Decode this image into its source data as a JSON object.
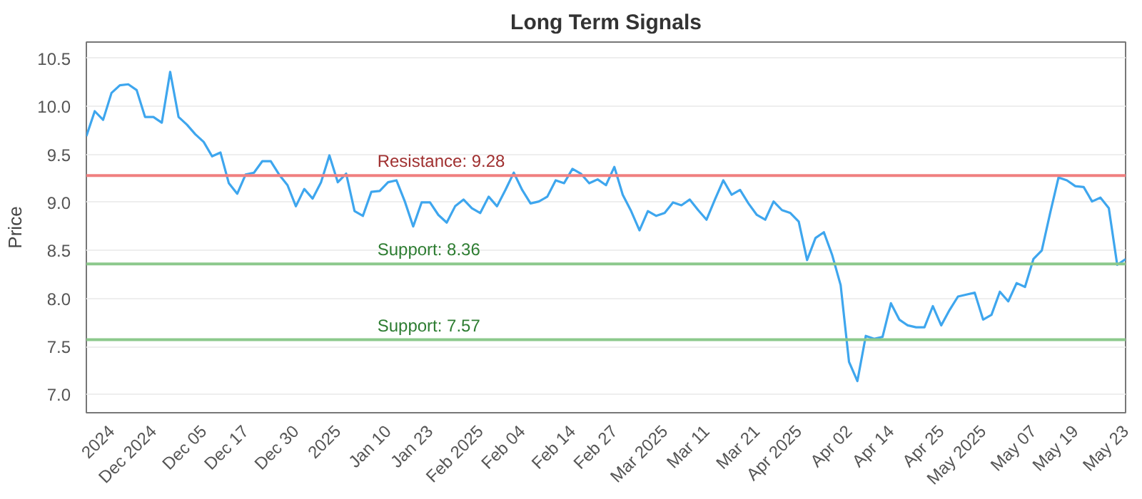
{
  "chart_data": {
    "type": "line",
    "title": "Long Term Signals",
    "ylabel": "Price",
    "categories": [
      null,
      null,
      null,
      "2024",
      null,
      null,
      null,
      null,
      "Dec 2024",
      null,
      null,
      null,
      null,
      null,
      "Dec 05",
      null,
      null,
      null,
      null,
      "Dec 17",
      null,
      null,
      null,
      null,
      null,
      "Dec 30",
      null,
      null,
      null,
      null,
      "2025",
      null,
      null,
      null,
      null,
      null,
      "Jan 10",
      null,
      null,
      null,
      null,
      "Jan 23",
      null,
      null,
      null,
      null,
      null,
      "Feb 2025",
      null,
      null,
      null,
      null,
      "Feb 04",
      null,
      null,
      null,
      null,
      null,
      "Feb 14",
      null,
      null,
      null,
      null,
      "Feb 27",
      null,
      null,
      null,
      null,
      null,
      "Mar 2025",
      null,
      null,
      null,
      null,
      "Mar 11",
      null,
      null,
      null,
      null,
      null,
      "Mar 21",
      null,
      null,
      null,
      null,
      "Apr 2025",
      null,
      null,
      null,
      null,
      null,
      "Apr 02",
      null,
      null,
      null,
      null,
      "Apr 14",
      null,
      null,
      null,
      null,
      null,
      "Apr 25",
      null,
      null,
      null,
      null,
      "May 2025",
      null,
      null,
      null,
      null,
      null,
      "May 07",
      null,
      null,
      null,
      null,
      "May 19",
      null,
      null,
      null,
      null,
      null,
      "May 23"
    ],
    "series": [
      {
        "color": "#3ea6ee",
        "values": [
          9.69,
          9.95,
          9.86,
          10.14,
          10.22,
          10.23,
          10.17,
          9.89,
          9.89,
          9.83,
          10.36,
          9.89,
          9.81,
          9.71,
          9.63,
          9.48,
          9.52,
          9.2,
          9.09,
          9.29,
          9.31,
          9.43,
          9.43,
          9.29,
          9.18,
          8.96,
          9.14,
          9.04,
          9.21,
          9.49,
          9.21,
          9.3,
          8.91,
          8.86,
          9.11,
          9.12,
          9.21,
          9.23,
          9.01,
          8.75,
          9.0,
          9.0,
          8.87,
          8.79,
          8.96,
          9.03,
          8.94,
          8.89,
          9.06,
          8.96,
          9.13,
          9.31,
          9.13,
          8.99,
          9.01,
          9.06,
          9.23,
          9.2,
          9.35,
          9.3,
          9.2,
          9.24,
          9.18,
          9.37,
          9.08,
          8.91,
          8.71,
          8.91,
          8.86,
          8.89,
          9.0,
          8.97,
          9.03,
          8.92,
          8.82,
          9.03,
          9.23,
          9.08,
          9.13,
          8.99,
          8.87,
          8.82,
          9.01,
          8.92,
          8.89,
          8.8,
          8.4,
          8.63,
          8.69,
          8.45,
          8.14,
          7.34,
          7.14,
          7.61,
          7.58,
          7.6,
          7.95,
          7.78,
          7.72,
          7.7,
          7.7,
          7.92,
          7.72,
          7.88,
          8.02,
          8.04,
          8.06,
          7.78,
          7.83,
          8.07,
          7.97,
          8.16,
          8.12,
          8.41,
          8.5,
          8.89,
          9.26,
          9.23,
          9.17,
          9.16,
          9.01,
          9.05,
          8.94,
          8.35,
          8.41
        ]
      }
    ],
    "ylim": [
      6.81,
      10.67
    ],
    "yticks": [
      {
        "value": 7,
        "label": "7.0"
      },
      {
        "value": 7.5,
        "label": "7.5"
      },
      {
        "value": 8,
        "label": "8.0"
      },
      {
        "value": 8.5,
        "label": "8.5"
      },
      {
        "value": 9,
        "label": "9.0"
      },
      {
        "value": 9.5,
        "label": "9.5"
      },
      {
        "value": 10,
        "label": "10.0"
      },
      {
        "value": 10.5,
        "label": "10.5"
      }
    ],
    "grid": "y",
    "marker": "none",
    "line_style": "solid",
    "ref_lines": [
      {
        "axis": "y",
        "value": 9.28,
        "label": "Resistance: 9.28",
        "color": "#f08080"
      },
      {
        "axis": "y",
        "value": 8.36,
        "label": "Support: 8.36",
        "color": "#8cc98c"
      },
      {
        "axis": "y",
        "value": 7.57,
        "label": "Support: 7.57",
        "color": "#8cc98c"
      }
    ]
  }
}
